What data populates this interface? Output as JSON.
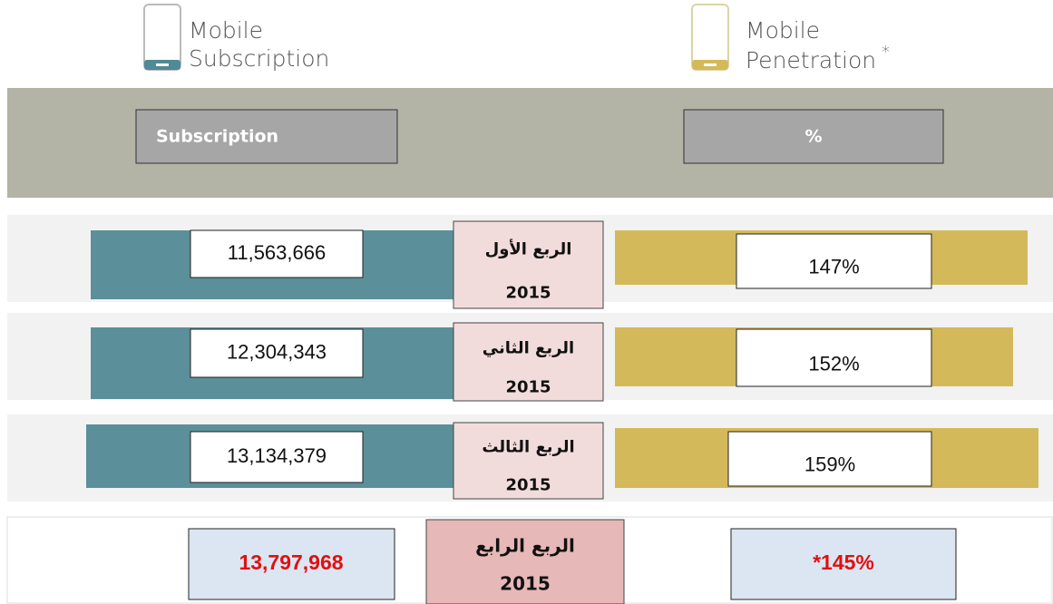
{
  "header": {
    "left": {
      "line1": "Mobile",
      "line2": "Subscription"
    },
    "right": {
      "line1": "Mobile",
      "line2": "Penetration",
      "note": "*"
    }
  },
  "columns": {
    "left": "Subscription",
    "right": "%"
  },
  "rows": [
    {
      "quarter": "الربع الأول",
      "year": "2015",
      "subscription": "11,563,666",
      "penetration": "147%"
    },
    {
      "quarter": "الربع الثاني",
      "year": "2015",
      "subscription": "12,304,343",
      "penetration": "152%"
    },
    {
      "quarter": "الربع الثالث",
      "year": "2015",
      "subscription": "13,134,379",
      "penetration": "159%"
    },
    {
      "quarter": "الربع الرابع",
      "year": "2015",
      "subscription": "13,797,968",
      "penetration": "*145%"
    }
  ]
}
